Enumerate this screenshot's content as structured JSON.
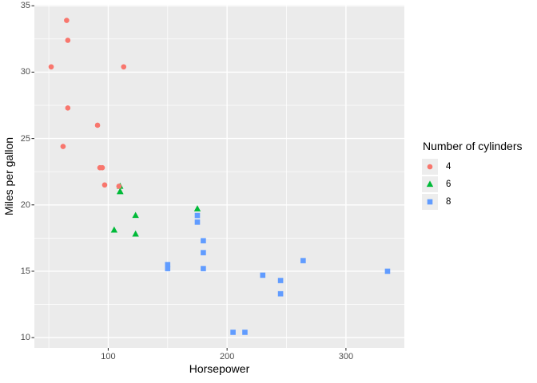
{
  "chart_data": {
    "type": "scatter",
    "title": "",
    "xlabel": "Horsepower",
    "ylabel": "Miles per gallon",
    "legend_title": "Number of cylinders",
    "legend_position": "right",
    "grid": "on",
    "panel_background": "#EBEBEB",
    "grid_color": "#FFFFFF",
    "tick_label_color": "#4D4D4D",
    "legend_key_background": "#EDEDED",
    "xlim": [
      37.85,
      349.15
    ],
    "ylim": [
      9.225,
      35.075
    ],
    "x_ticks": [
      100,
      200,
      300
    ],
    "x_minor_ticks": [
      50,
      150,
      250
    ],
    "y_ticks": [
      10,
      15,
      20,
      25,
      30,
      35
    ],
    "y_minor_ticks": [
      12.5,
      17.5,
      22.5,
      27.5,
      32.5
    ],
    "series": [
      {
        "name": "4",
        "shape": "circle",
        "color": "#F8766D",
        "points": [
          [
            93,
            22.8
          ],
          [
            62,
            24.4
          ],
          [
            95,
            22.8
          ],
          [
            66,
            32.4
          ],
          [
            52,
            30.4
          ],
          [
            65,
            33.9
          ],
          [
            97,
            21.5
          ],
          [
            66,
            27.3
          ],
          [
            91,
            26.0
          ],
          [
            113,
            30.4
          ],
          [
            109,
            21.4
          ]
        ]
      },
      {
        "name": "6",
        "shape": "triangle",
        "color": "#00BA38",
        "points": [
          [
            110,
            21.0
          ],
          [
            110,
            21.0
          ],
          [
            110,
            21.4
          ],
          [
            105,
            18.1
          ],
          [
            123,
            19.2
          ],
          [
            123,
            17.8
          ],
          [
            175,
            19.7
          ]
        ]
      },
      {
        "name": "8",
        "shape": "square",
        "color": "#619CFF",
        "points": [
          [
            175,
            18.7
          ],
          [
            245,
            14.3
          ],
          [
            180,
            16.4
          ],
          [
            180,
            17.3
          ],
          [
            180,
            15.2
          ],
          [
            205,
            10.4
          ],
          [
            215,
            10.4
          ],
          [
            230,
            14.7
          ],
          [
            150,
            15.5
          ],
          [
            150,
            15.2
          ],
          [
            245,
            13.3
          ],
          [
            175,
            19.2
          ],
          [
            264,
            15.8
          ],
          [
            335,
            15.0
          ]
        ]
      }
    ]
  }
}
